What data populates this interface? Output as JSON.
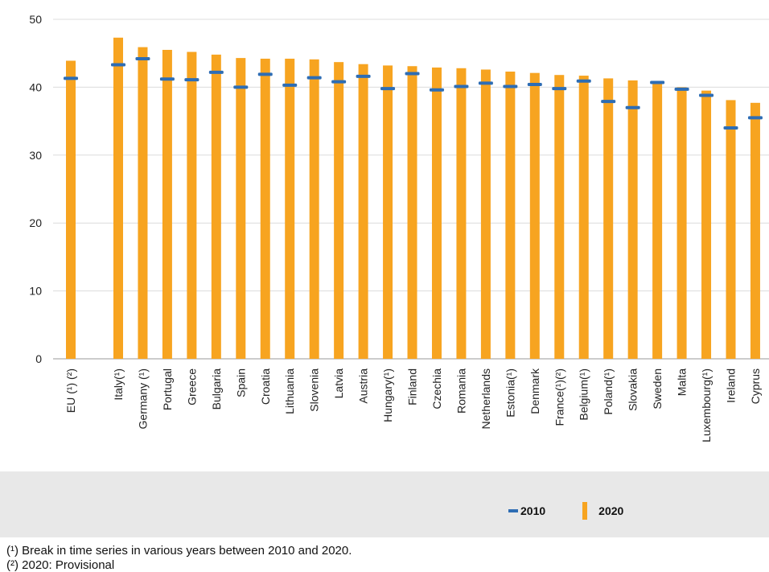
{
  "chart_data": {
    "type": "bar",
    "categories": [
      "EU (¹) (²)",
      "Italy(¹)",
      "Germany (¹)",
      "Portugal",
      "Greece",
      "Bulgaria",
      "Spain",
      "Croatia",
      "Lithuania",
      "Slovenia",
      "Latvia",
      "Austria",
      "Hungary(¹)",
      "Finland",
      "Czechia",
      "Romania",
      "Netherlands",
      "Estonia(¹)",
      "Denmark",
      "France(¹)(²)",
      "Belgium(¹)",
      "Poland(¹)",
      "Slovakia",
      "Sweden",
      "Malta",
      "Luxembourg(¹)",
      "Ireland",
      "Cyprus"
    ],
    "series": [
      {
        "name": "2020",
        "kind": "bar",
        "color": "#f7a420",
        "values": [
          43.9,
          47.3,
          45.9,
          45.5,
          45.2,
          44.8,
          44.3,
          44.2,
          44.2,
          44.1,
          43.7,
          43.4,
          43.2,
          43.1,
          42.9,
          42.8,
          42.6,
          42.3,
          42.1,
          41.8,
          41.7,
          41.3,
          41.0,
          40.7,
          40.0,
          39.5,
          38.1,
          37.7
        ]
      },
      {
        "name": "2010",
        "kind": "marker",
        "color": "#2e6db4",
        "values": [
          41.3,
          43.3,
          44.2,
          41.2,
          41.1,
          42.2,
          40.0,
          41.9,
          40.3,
          41.4,
          40.8,
          41.6,
          39.8,
          42.0,
          39.6,
          40.1,
          40.6,
          40.1,
          40.4,
          39.8,
          40.9,
          37.9,
          37.0,
          40.7,
          39.7,
          38.8,
          34.0,
          35.5
        ]
      }
    ],
    "yticks": [
      "0",
      "10",
      "20",
      "30",
      "40",
      "50"
    ],
    "ylim": [
      0,
      50
    ],
    "grid": true,
    "legend_position": "bottom-right"
  },
  "legend": {
    "label_2010": "2010",
    "label_2020": "2020"
  },
  "footnotes": {
    "note1": "(¹) Break in time series in various years between 2010 and 2020.",
    "note2": "(²) 2020: Provisional"
  }
}
